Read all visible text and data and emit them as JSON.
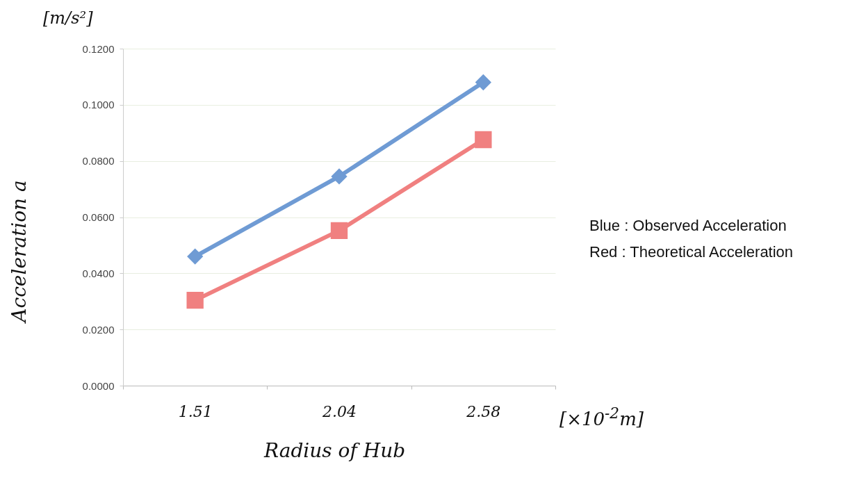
{
  "chart_data": {
    "type": "line",
    "xlabel": "Radius of Hub",
    "ylabel": "Acceleration a",
    "categories": [
      "1.51",
      "2.04",
      "2.58"
    ],
    "series": [
      {
        "color": "#6f9bd4",
        "marker": "diamond",
        "values": [
          0.046,
          0.0745,
          0.108
        ]
      },
      {
        "color": "#f08080",
        "marker": "square",
        "values": [
          0.0304,
          0.0552,
          0.0876
        ]
      }
    ],
    "ylim": [
      0,
      0.12
    ],
    "yticks": [
      {
        "value": 0,
        "label": "0.0000"
      },
      {
        "value": 0.02,
        "label": "0.0200"
      },
      {
        "value": 0.04,
        "label": "0.0400"
      },
      {
        "value": 0.06,
        "label": "0.0600"
      },
      {
        "value": 0.08,
        "label": "0.0800"
      },
      {
        "value": 0.1,
        "label": "0.1000"
      },
      {
        "value": 0.12,
        "label": "0.1200"
      }
    ],
    "grid": "y",
    "annotations": [
      "[m/s²]",
      "[×10$^{-2}$m]",
      "Blue : Observed Acceleration",
      "Red : Theoretical Acceleration"
    ]
  }
}
